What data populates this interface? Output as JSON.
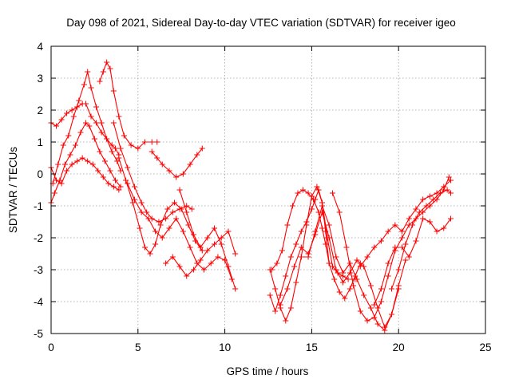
{
  "chart_data": {
    "type": "scatter",
    "title": "Day 098 of 2021, Sidereal Day-to-day VTEC variation (SDTVAR) for receiver igeo",
    "xlabel": "GPS time / hours",
    "ylabel": "SDTVAR / TECUs",
    "xlim": [
      0,
      25
    ],
    "ylim": [
      -5,
      4
    ],
    "x_ticks": [
      0,
      5,
      10,
      15,
      20,
      25
    ],
    "y_ticks": [
      -5,
      -4,
      -3,
      -2,
      -1,
      0,
      1,
      2,
      3,
      4
    ],
    "x_tick_labels": [
      "0",
      "5",
      "10",
      "15",
      "20",
      "25"
    ],
    "y_tick_labels": [
      "-5",
      "-4",
      "-3",
      "-2",
      "-1",
      "0",
      "1",
      "2",
      "3",
      "4"
    ],
    "grid": true,
    "marker": "+",
    "color": "#ff0000",
    "series": [
      {
        "x": [
          0.0,
          0.3,
          0.6,
          0.9,
          1.2,
          1.5,
          1.8,
          2.0,
          2.3,
          2.6,
          2.9,
          3.2,
          3.5,
          3.7,
          3.9
        ],
        "y": [
          1.6,
          1.5,
          1.7,
          1.9,
          2.0,
          2.1,
          2.2,
          2.2,
          1.8,
          1.6,
          1.3,
          1.1,
          0.9,
          0.8,
          0.6
        ]
      },
      {
        "x": [
          0.0,
          0.2,
          0.5,
          0.8,
          1.1,
          1.4,
          1.7,
          2.0,
          2.2,
          2.5,
          2.8,
          3.1,
          3.4,
          3.7,
          4.0
        ],
        "y": [
          -0.9,
          -0.6,
          -0.2,
          0.3,
          0.6,
          0.9,
          1.3,
          1.6,
          1.5,
          1.1,
          0.7,
          0.4,
          0.1,
          -0.2,
          -0.4
        ]
      },
      {
        "x": [
          0.1,
          0.4,
          0.7,
          1.0,
          1.3,
          1.6,
          1.9,
          2.1,
          2.3,
          2.6,
          2.9,
          3.2,
          3.5,
          3.8,
          4.0
        ],
        "y": [
          -0.3,
          0.3,
          0.9,
          1.2,
          1.8,
          2.3,
          2.8,
          3.2,
          2.7,
          2.1,
          1.6,
          1.1,
          0.7,
          0.4,
          0.1
        ]
      },
      {
        "x": [
          0.0,
          0.3,
          0.6,
          0.9,
          1.2,
          1.5,
          1.8,
          2.1,
          2.4,
          2.7,
          3.0,
          3.3,
          3.6,
          3.9
        ],
        "y": [
          0.2,
          -0.2,
          -0.3,
          0.1,
          0.3,
          0.4,
          0.5,
          0.4,
          0.3,
          0.1,
          -0.1,
          -0.3,
          -0.4,
          -0.5
        ]
      },
      {
        "x": [
          2.8,
          3.0,
          3.2,
          3.4,
          3.6,
          3.9,
          4.2,
          4.6,
          5.0,
          5.4,
          5.8,
          6.1
        ],
        "y": [
          2.9,
          3.2,
          3.5,
          3.3,
          2.6,
          1.8,
          1.2,
          0.9,
          0.8,
          1.0,
          1.0,
          1.0
        ]
      },
      {
        "x": [
          3.6,
          4.0,
          4.4,
          4.8,
          5.2,
          5.5,
          5.8,
          6.2,
          6.6,
          7.0,
          7.4,
          7.8,
          8.1
        ],
        "y": [
          1.6,
          0.8,
          0.2,
          -0.4,
          -0.9,
          -1.2,
          -1.4,
          -1.5,
          -1.4,
          -1.2,
          -1.1,
          -1.0,
          -1.1
        ]
      },
      {
        "x": [
          3.9,
          4.3,
          4.7,
          5.1,
          5.4,
          5.7,
          6.0,
          6.3,
          6.7,
          7.1,
          7.5,
          7.9,
          8.3,
          8.7
        ],
        "y": [
          0.5,
          -0.2,
          -0.9,
          -1.7,
          -2.3,
          -2.5,
          -2.2,
          -1.6,
          -1.1,
          -0.9,
          -1.1,
          -1.6,
          -2.1,
          -2.4
        ]
      },
      {
        "x": [
          4.4,
          4.8,
          5.2,
          5.6,
          6.0,
          6.4,
          6.8,
          7.2,
          7.6,
          8.0,
          8.4,
          8.8,
          9.2,
          9.6,
          10.0,
          10.4
        ],
        "y": [
          -0.3,
          -0.8,
          -1.2,
          -1.4,
          -1.8,
          -2.0,
          -1.7,
          -1.4,
          -1.8,
          -2.3,
          -2.8,
          -3.0,
          -2.8,
          -2.6,
          -2.7,
          -3.3
        ]
      },
      {
        "x": [
          5.8,
          6.1,
          6.4,
          6.8,
          7.2,
          7.6,
          8.0,
          8.4,
          8.7
        ],
        "y": [
          0.7,
          0.5,
          0.3,
          0.1,
          -0.1,
          0.0,
          0.3,
          0.6,
          0.8
        ]
      },
      {
        "x": [
          6.6,
          7.0,
          7.4,
          7.8,
          8.2,
          8.6,
          9.0,
          9.4,
          9.8,
          10.2,
          10.6
        ],
        "y": [
          -2.8,
          -2.6,
          -2.9,
          -3.2,
          -3.0,
          -2.7,
          -2.4,
          -2.2,
          -2.0,
          -1.8,
          -2.5
        ]
      },
      {
        "x": [
          7.4,
          7.8,
          8.2,
          8.6,
          9.0,
          9.4,
          9.8,
          10.2,
          10.6
        ],
        "y": [
          -0.5,
          -1.2,
          -1.9,
          -2.3,
          -2.0,
          -1.7,
          -2.2,
          -2.9,
          -3.6
        ]
      },
      {
        "x": [
          12.6,
          12.9,
          13.2,
          13.5,
          13.8,
          14.1,
          14.4,
          14.7,
          15.0,
          15.3,
          15.6,
          15.9,
          16.2,
          16.5,
          16.8,
          17.1,
          17.5
        ],
        "y": [
          -3.0,
          -3.6,
          -4.2,
          -4.6,
          -4.2,
          -3.4,
          -2.6,
          -1.6,
          -0.7,
          -0.4,
          -0.9,
          -2.0,
          -2.9,
          -3.1,
          -3.2,
          -3.3,
          -3.3
        ]
      },
      {
        "x": [
          12.6,
          12.9,
          13.2,
          13.5,
          13.8,
          14.1,
          14.4,
          14.7,
          15.0,
          15.2,
          15.4,
          15.6,
          15.8,
          16.0
        ],
        "y": [
          -3.8,
          -4.3,
          -3.8,
          -3.2,
          -2.6,
          -2.2,
          -1.8,
          -1.5,
          -1.1,
          -0.8,
          -0.5,
          -0.9,
          -1.8,
          -2.8
        ]
      },
      {
        "x": [
          12.7,
          13.0,
          13.3,
          13.6,
          13.9,
          14.2,
          14.5,
          14.8,
          15.1,
          15.4,
          15.6,
          15.8,
          16.0,
          16.3,
          16.6,
          16.9,
          17.2,
          17.5,
          17.8
        ],
        "y": [
          -3.0,
          -2.8,
          -2.4,
          -1.6,
          -1.0,
          -0.6,
          -0.5,
          -0.6,
          -0.8,
          -1.2,
          -1.7,
          -2.2,
          -2.8,
          -3.3,
          -3.7,
          -3.9,
          -3.6,
          -3.2,
          -2.8
        ]
      },
      {
        "x": [
          13.2,
          13.6,
          14.0,
          14.4,
          14.8,
          15.2,
          15.6,
          16.0,
          16.4,
          16.8,
          17.2,
          17.6,
          18.0,
          18.4,
          18.8,
          19.2,
          19.6,
          20.0
        ],
        "y": [
          -4.1,
          -3.6,
          -2.9,
          -2.3,
          -2.5,
          -1.9,
          -1.2,
          -2.0,
          -3.0,
          -3.4,
          -3.1,
          -2.7,
          -2.9,
          -3.5,
          -4.2,
          -4.8,
          -4.4,
          -3.6
        ]
      },
      {
        "x": [
          14.4,
          14.8,
          15.2,
          15.6,
          16.0,
          16.4,
          16.8,
          17.2,
          17.6,
          18.0,
          18.4,
          18.8,
          19.2,
          19.6,
          20.0,
          20.4
        ],
        "y": [
          -2.6,
          -2.6,
          -1.8,
          -1.0,
          -1.6,
          -2.6,
          -3.1,
          -2.8,
          -3.3,
          -3.8,
          -4.2,
          -4.7,
          -4.9,
          -4.4,
          -3.5,
          -2.7
        ]
      },
      {
        "x": [
          16.2,
          16.6,
          17.0,
          17.4,
          17.8,
          18.2,
          18.6,
          19.0,
          19.4,
          19.8,
          20.2,
          20.6,
          21.0,
          21.4,
          21.8,
          22.2,
          22.6,
          22.9
        ],
        "y": [
          -0.6,
          -1.2,
          -2.3,
          -3.5,
          -4.3,
          -4.6,
          -4.5,
          -4.0,
          -3.2,
          -2.4,
          -2.0,
          -1.6,
          -1.4,
          -1.2,
          -1.0,
          -0.8,
          -0.5,
          -0.1
        ]
      },
      {
        "x": [
          18.6,
          19.0,
          19.4,
          19.8,
          20.2,
          20.6,
          21.0,
          21.4,
          21.8,
          22.2,
          22.6,
          23.0
        ],
        "y": [
          -4.1,
          -3.6,
          -2.8,
          -2.3,
          -2.3,
          -2.6,
          -2.1,
          -1.4,
          -1.5,
          -1.8,
          -1.7,
          -1.4
        ]
      },
      {
        "x": [
          17.8,
          18.2,
          18.6,
          19.0,
          19.4,
          19.8,
          20.2,
          20.6,
          21.0,
          21.4,
          21.8,
          22.2,
          22.6,
          23.0
        ],
        "y": [
          -2.9,
          -2.6,
          -2.3,
          -2.1,
          -1.8,
          -1.6,
          -1.8,
          -1.4,
          -1.1,
          -0.8,
          -0.7,
          -0.6,
          -0.4,
          -0.2
        ]
      },
      {
        "x": [
          19.6,
          20.0,
          20.4,
          20.8,
          21.2,
          21.6,
          22.0,
          22.4,
          22.8,
          23.0
        ],
        "y": [
          -3.6,
          -3.0,
          -2.2,
          -1.6,
          -1.2,
          -1.0,
          -0.8,
          -0.6,
          -0.5,
          -0.6
        ]
      }
    ]
  }
}
